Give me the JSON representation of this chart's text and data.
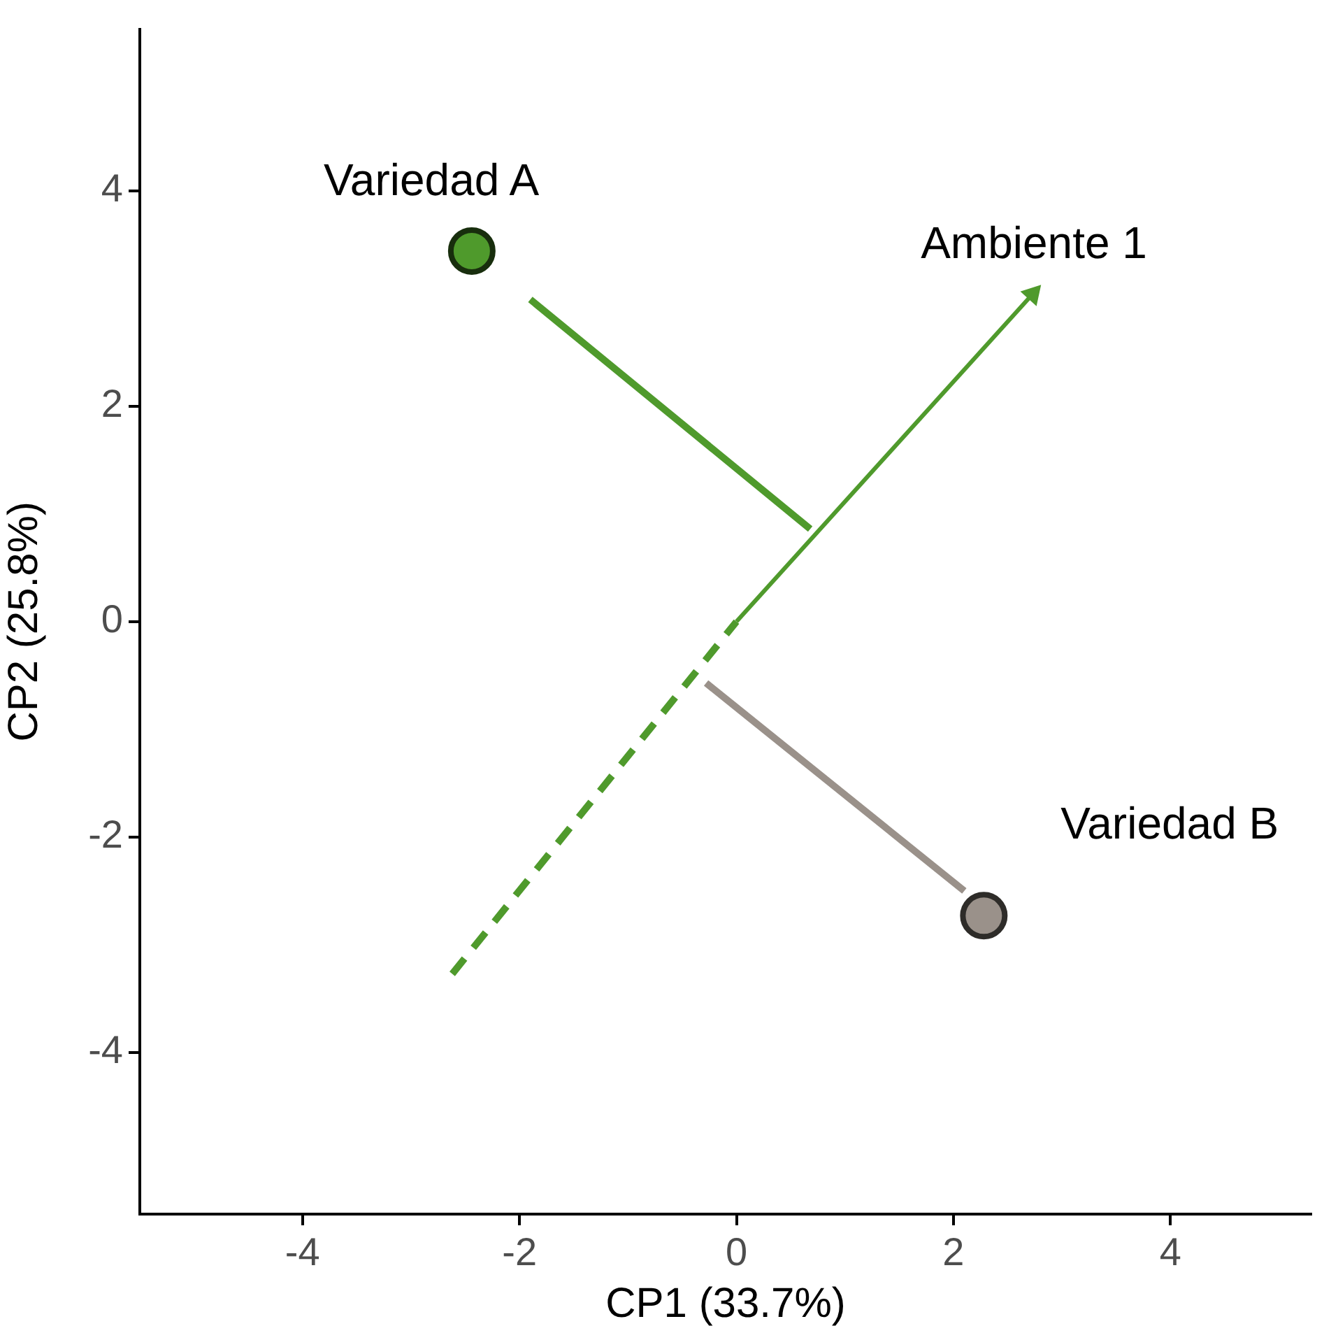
{
  "chart_data": {
    "type": "scatter",
    "xlabel": "CP1 (33.7%)",
    "ylabel": "CP2 (25.8%)",
    "xlim": [
      -5.5,
      5.3
    ],
    "ylim": [
      -5.5,
      5.5
    ],
    "xticks": [
      -4,
      -2,
      0,
      2,
      4
    ],
    "yticks": [
      -4,
      -2,
      0,
      2,
      4
    ],
    "grid": false,
    "legend": false,
    "series": [
      {
        "type": "line",
        "color": "#4f9a2c",
        "x": [
          -2.62,
          0
        ],
        "values": [
          -3.27,
          0
        ],
        "marker": "none",
        "line_style": "dashed"
      },
      {
        "type": "line",
        "color": "#4f9a2c",
        "x": [
          -1.9,
          0.68
        ],
        "values": [
          2.99,
          0.86
        ],
        "marker": "none",
        "line_style": "solid"
      },
      {
        "type": "line",
        "color": "#9a918a",
        "x": [
          -0.28,
          2.1
        ],
        "values": [
          -0.57,
          -2.5
        ],
        "marker": "none",
        "line_style": "solid"
      },
      {
        "name": "Ambiente 1",
        "type": "line",
        "color": "#4f9a2c",
        "x": [
          0,
          2.73
        ],
        "values": [
          0,
          3.04
        ],
        "line_style": "solid"
      },
      {
        "name": "Variedad A",
        "color": "#4f9a2c",
        "x": [
          -2.44
        ],
        "values": [
          3.44
        ],
        "marker": "circle"
      },
      {
        "name": "Variedad B",
        "color": "#9a918a",
        "x": [
          2.28
        ],
        "values": [
          -2.73
        ],
        "marker": "circle"
      }
    ]
  }
}
